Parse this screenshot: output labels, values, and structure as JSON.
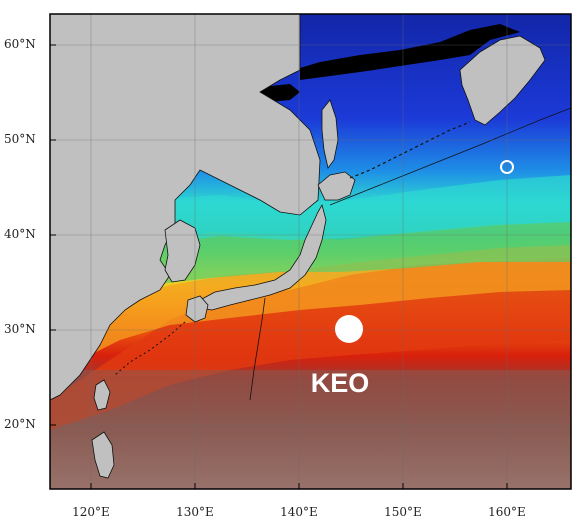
{
  "lat_labels": [
    "60°N",
    "50°N",
    "40°N",
    "30°N",
    "20°N"
  ],
  "lon_labels": [
    "120°E",
    "130°E",
    "140°E",
    "150°E",
    "160°E"
  ],
  "stations": {
    "keo": {
      "label": "KEO"
    }
  },
  "colors": {
    "land": "#c0c0c0",
    "ocean_cold": "#1a2ec8",
    "ocean_cyan": "#2fd6d6",
    "ocean_green": "#5fd07a",
    "ocean_yellow": "#f0d020",
    "ocean_orange": "#f07a10",
    "ocean_red": "#d8200c",
    "ocean_warm_south": "#8a5a50",
    "ice_black": "#000000"
  }
}
